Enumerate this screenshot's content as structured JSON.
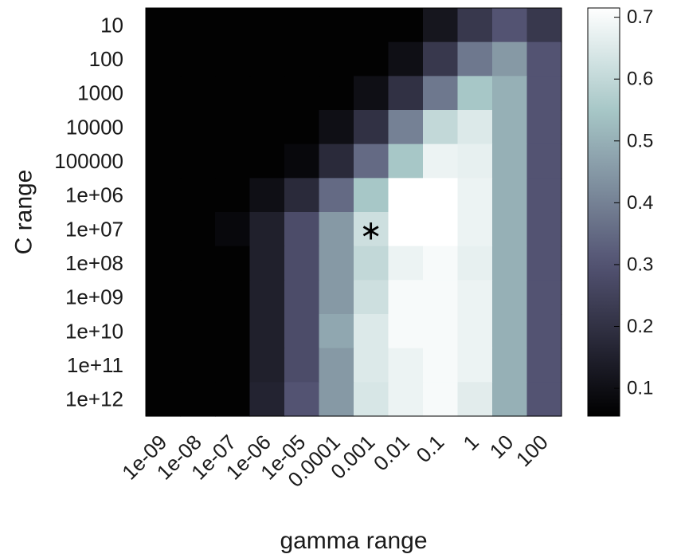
{
  "chart_data": {
    "type": "heatmap",
    "xlabel": "gamma range",
    "ylabel": "C range",
    "x_categories": [
      "1e-09",
      "1e-08",
      "1e-07",
      "1e-06",
      "1e-05",
      "0.0001",
      "0.001",
      "0.01",
      "0.1",
      "1",
      "10",
      "100"
    ],
    "y_categories": [
      "10",
      "100",
      "1000",
      "10000",
      "100000",
      "1e+06",
      "1e+07",
      "1e+08",
      "1e+09",
      "1e+10",
      "1e+11",
      "1e+12"
    ],
    "values": [
      [
        0.06,
        0.06,
        0.06,
        0.06,
        0.06,
        0.06,
        0.06,
        0.06,
        0.12,
        0.22,
        0.3,
        0.22
      ],
      [
        0.06,
        0.06,
        0.06,
        0.06,
        0.06,
        0.06,
        0.06,
        0.1,
        0.22,
        0.38,
        0.45,
        0.3
      ],
      [
        0.06,
        0.06,
        0.06,
        0.06,
        0.06,
        0.06,
        0.1,
        0.2,
        0.38,
        0.55,
        0.5,
        0.3
      ],
      [
        0.06,
        0.06,
        0.06,
        0.06,
        0.06,
        0.1,
        0.2,
        0.4,
        0.6,
        0.65,
        0.5,
        0.3
      ],
      [
        0.06,
        0.06,
        0.06,
        0.06,
        0.08,
        0.18,
        0.35,
        0.55,
        0.68,
        0.67,
        0.5,
        0.3
      ],
      [
        0.06,
        0.06,
        0.06,
        0.1,
        0.18,
        0.35,
        0.55,
        0.72,
        0.72,
        0.68,
        0.5,
        0.3
      ],
      [
        0.06,
        0.06,
        0.08,
        0.15,
        0.28,
        0.45,
        0.62,
        0.72,
        0.72,
        0.68,
        0.5,
        0.3
      ],
      [
        0.06,
        0.06,
        0.06,
        0.15,
        0.28,
        0.45,
        0.6,
        0.68,
        0.7,
        0.67,
        0.5,
        0.3
      ],
      [
        0.06,
        0.06,
        0.06,
        0.15,
        0.28,
        0.45,
        0.62,
        0.7,
        0.7,
        0.68,
        0.5,
        0.3
      ],
      [
        0.06,
        0.06,
        0.06,
        0.15,
        0.28,
        0.48,
        0.65,
        0.7,
        0.7,
        0.68,
        0.5,
        0.3
      ],
      [
        0.06,
        0.06,
        0.06,
        0.15,
        0.28,
        0.45,
        0.65,
        0.68,
        0.7,
        0.68,
        0.5,
        0.3
      ],
      [
        0.06,
        0.06,
        0.06,
        0.16,
        0.3,
        0.45,
        0.64,
        0.68,
        0.7,
        0.66,
        0.5,
        0.3
      ]
    ],
    "colorbar": {
      "colormap": "bone",
      "range": [
        0.055,
        0.715
      ],
      "ticks": [
        0.1,
        0.2,
        0.3,
        0.4,
        0.5,
        0.6,
        0.7
      ]
    },
    "marker": {
      "symbol": "∗",
      "x": "0.001",
      "y": "1e+07"
    },
    "grid": false,
    "legend": "none"
  }
}
